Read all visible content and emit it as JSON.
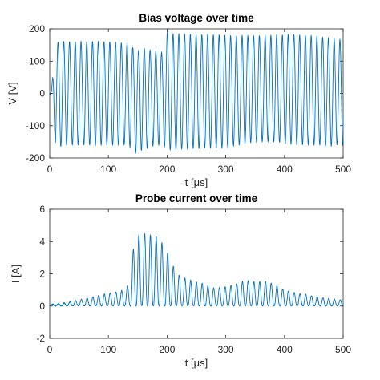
{
  "chart_data": [
    {
      "type": "line",
      "title": "Bias voltage over time",
      "xlabel": "t [μs]",
      "ylabel": "V [V]",
      "xlim": [
        0,
        500
      ],
      "ylim": [
        -200,
        200
      ],
      "xticks": [
        "0",
        "100",
        "200",
        "300",
        "400",
        "500"
      ],
      "yticks": [
        "200",
        "100",
        "0",
        "-100",
        "-200"
      ],
      "grid": false,
      "color": "#0072BD",
      "series": [
        {
          "kind": "oscillation",
          "cycles": 51,
          "phase_start": -1.2,
          "envelope": {
            "t": [
              0,
              3,
              10,
              40,
              100,
              130,
              140,
              145,
              160,
              180,
              195,
              200,
              210,
              250,
              300,
              350,
              380,
              420,
              450,
              480,
              500
            ],
            "upper": [
              0,
              10,
              160,
              160,
              160,
              155,
              150,
              125,
              140,
              130,
              125,
              190,
              185,
              182,
              180,
              178,
              180,
              182,
              178,
              170,
              165
            ],
            "lower": [
              0,
              -15,
              -165,
              -160,
              -160,
              -160,
              -170,
              -185,
              -175,
              -160,
              -165,
              -175,
              -175,
              -170,
              -168,
              -150,
              -150,
              -158,
              -160,
              -162,
              -160
            ]
          }
        }
      ]
    },
    {
      "type": "line",
      "title": "Probe current over time",
      "xlabel": "t [μs]",
      "ylabel": "I [A]",
      "xlim": [
        0,
        500
      ],
      "ylim": [
        -2,
        6
      ],
      "xticks": [
        "0",
        "100",
        "200",
        "300",
        "400",
        "500"
      ],
      "yticks": [
        "6",
        "4",
        "2",
        "0",
        "-2"
      ],
      "grid": false,
      "color": "#0072BD",
      "series": [
        {
          "kind": "pulses",
          "cycles": 51,
          "baseline": 0.05,
          "peaks": {
            "t": [
              0,
              20,
              40,
              60,
              80,
              100,
              120,
              130,
              138,
              145,
              155,
              165,
              175,
              185,
              195,
              205,
              215,
              225,
              240,
              260,
              280,
              300,
              320,
              335,
              350,
              370,
              385,
              400,
              420,
              440,
              460,
              480,
              500
            ],
            "val": [
              0.1,
              0.15,
              0.3,
              0.45,
              0.6,
              0.8,
              0.9,
              1.1,
              1.6,
              4.7,
              4.3,
              4.6,
              4.3,
              4.3,
              3.7,
              3.0,
              2.1,
              1.8,
              1.6,
              1.4,
              1.1,
              1.2,
              1.4,
              1.6,
              1.5,
              1.55,
              1.3,
              1.0,
              0.8,
              0.7,
              0.5,
              0.45,
              0.35
            ]
          }
        }
      ]
    }
  ]
}
